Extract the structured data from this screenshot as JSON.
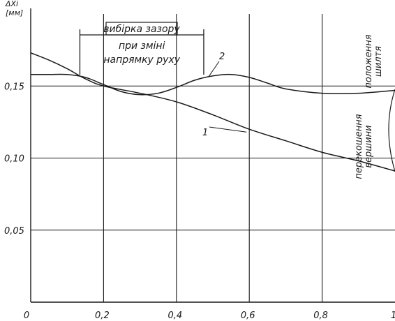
{
  "chart_data": {
    "type": "line",
    "xlim": [
      0,
      1.0
    ],
    "ylim": [
      0,
      0.2
    ],
    "grid": true,
    "ylabel_lines": [
      "ΔXi",
      "[мм]"
    ],
    "x_ticks": [
      {
        "value": 0,
        "label": "0"
      },
      {
        "value": 0.2,
        "label": "0,2"
      },
      {
        "value": 0.4,
        "label": "0,4"
      },
      {
        "value": 0.6,
        "label": "0,6"
      },
      {
        "value": 0.8,
        "label": "0,8"
      },
      {
        "value": 1.0,
        "label": "1"
      }
    ],
    "y_ticks": [
      {
        "value": 0.15,
        "label": "0,15"
      },
      {
        "value": 0.1,
        "label": "0,10"
      },
      {
        "value": 0.05,
        "label": "0,05"
      }
    ],
    "series": [
      {
        "name": "1",
        "x": [
          0,
          0.05,
          0.1,
          0.15,
          0.2,
          0.3,
          0.4,
          0.5,
          0.6,
          0.7,
          0.8,
          0.9,
          1.0
        ],
        "y": [
          0.173,
          0.168,
          0.162,
          0.155,
          0.15,
          0.145,
          0.139,
          0.13,
          0.12,
          0.112,
          0.104,
          0.098,
          0.091
        ]
      },
      {
        "name": "2",
        "x": [
          0,
          0.05,
          0.1,
          0.15,
          0.2,
          0.25,
          0.3,
          0.35,
          0.4,
          0.45,
          0.5,
          0.55,
          0.6,
          0.65,
          0.7,
          0.8,
          0.9,
          1.0
        ],
        "y": [
          0.158,
          0.158,
          0.158,
          0.156,
          0.151,
          0.146,
          0.144,
          0.145,
          0.149,
          0.154,
          0.157,
          0.158,
          0.156,
          0.152,
          0.148,
          0.145,
          0.145,
          0.147
        ]
      }
    ],
    "annotations": {
      "backlash_line1": "вибірка зазору",
      "backlash_line2": "при зміні",
      "backlash_line3": "напрямку руху",
      "backlash_x_range": [
        0.135,
        0.475
      ],
      "right_label_top_line1": "положення",
      "right_label_top_line2": "шилтя",
      "right_label_mid_line1": "перекошення",
      "right_label_mid_line2": "вершини"
    }
  }
}
